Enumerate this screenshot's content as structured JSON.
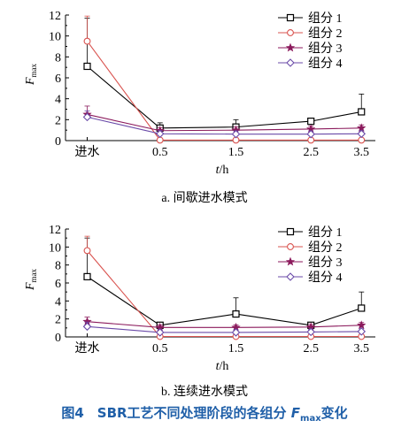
{
  "chart_data": [
    {
      "type": "line",
      "caption": "a. 间歇进水模式",
      "x": [
        "进水",
        "0.5",
        "1.5",
        "2.5",
        "3.5"
      ],
      "xlabel": "t/h",
      "ylabel": "F",
      "ylabel_sub": "max",
      "ylim": [
        0,
        12
      ],
      "yticks": [
        0,
        2,
        4,
        6,
        8,
        10,
        12
      ],
      "legend_position": "top-right",
      "series": [
        {
          "name": "组分 1",
          "values": [
            7.1,
            1.2,
            1.3,
            1.85,
            2.75
          ],
          "errors": [
            4.6,
            0.5,
            0.7,
            0.3,
            1.7
          ],
          "color": "#000000",
          "marker": "square"
        },
        {
          "name": "组分 2",
          "values": [
            9.5,
            0.05,
            0.05,
            0.05,
            0.05
          ],
          "errors": [
            2.4,
            0.1,
            0.1,
            0.1,
            0.1
          ],
          "color": "#d9534f",
          "marker": "circle"
        },
        {
          "name": "组分 3",
          "values": [
            2.5,
            0.95,
            1.0,
            1.1,
            1.2
          ],
          "errors": [
            0.8,
            0.3,
            0.3,
            0.3,
            0.3
          ],
          "color": "#8b1a5c",
          "marker": "star"
        },
        {
          "name": "组分 4",
          "values": [
            2.25,
            0.65,
            0.62,
            0.62,
            0.65
          ],
          "errors": [
            0.6,
            0.3,
            0.3,
            0.3,
            0.3
          ],
          "color": "#6a4aa8",
          "marker": "diamond"
        }
      ]
    },
    {
      "type": "line",
      "caption": "b. 连续进水模式",
      "x": [
        "进水",
        "0.5",
        "1.5",
        "2.5",
        "3.5"
      ],
      "xlabel": "t/h",
      "ylabel": "F",
      "ylabel_sub": "max",
      "ylim": [
        0,
        12
      ],
      "yticks": [
        0,
        2,
        4,
        6,
        8,
        10,
        12
      ],
      "legend_position": "top-right",
      "series": [
        {
          "name": "组分 1",
          "values": [
            6.7,
            1.3,
            2.55,
            1.3,
            3.2
          ],
          "errors": [
            4.3,
            0.3,
            1.8,
            0.3,
            1.8
          ],
          "color": "#000000",
          "marker": "square"
        },
        {
          "name": "组分 2",
          "values": [
            9.6,
            0.05,
            0.05,
            0.05,
            0.05
          ],
          "errors": [
            1.6,
            0.1,
            0.1,
            0.1,
            0.1
          ],
          "color": "#d9534f",
          "marker": "circle"
        },
        {
          "name": "组分 3",
          "values": [
            1.7,
            1.05,
            1.05,
            1.1,
            1.3
          ],
          "errors": [
            0.5,
            0.3,
            0.3,
            0.3,
            0.3
          ],
          "color": "#8b1a5c",
          "marker": "star"
        },
        {
          "name": "组分 4",
          "values": [
            1.15,
            0.5,
            0.5,
            0.55,
            0.6
          ],
          "errors": [
            0.5,
            0.3,
            0.3,
            0.3,
            0.3
          ],
          "color": "#6a4aa8",
          "marker": "diamond"
        }
      ]
    }
  ],
  "figure_caption": {
    "prefix": "图4　SBR工艺不同处理阶段的各组分 ",
    "var": "F",
    "sub": "max",
    "suffix": "变化"
  }
}
